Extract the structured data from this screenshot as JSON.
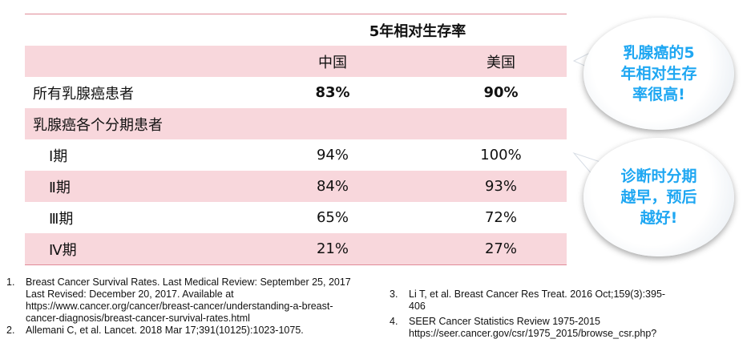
{
  "table": {
    "title": "5年相对生存率",
    "col_a": "中国",
    "col_b": "美国",
    "rows": [
      {
        "label": "所有乳腺癌患者",
        "a": "83%",
        "b": "90%"
      },
      {
        "label": "乳腺癌各个分期患者",
        "a": "",
        "b": ""
      },
      {
        "label": "Ⅰ期",
        "a": "94%",
        "b": "100%"
      },
      {
        "label": "Ⅱ期",
        "a": "84%",
        "b": "93%"
      },
      {
        "label": "Ⅲ期",
        "a": "65%",
        "b": "72%"
      },
      {
        "label": "Ⅳ期",
        "a": "21%",
        "b": "27%"
      }
    ]
  },
  "callouts": [
    {
      "text": "乳腺癌的5\n年相对生存\n率很高!"
    },
    {
      "text": "诊断时分期\n越早，预后\n越好!"
    }
  ],
  "references": [
    {
      "num": "1.",
      "text": "Breast Cancer Survival Rates. Last Medical Review: September 25, 2017\nLast Revised: December 20, 2017. Available at\nhttps://www.cancer.org/cancer/breast-cancer/understanding-a-breast-\ncancer-diagnosis/breast-cancer-survival-rates.html"
    },
    {
      "num": "2.",
      "text": "Allemani C, et al. Lancet. 2018 Mar 17;391(10125):1023-1075."
    },
    {
      "num": "3.",
      "text": "Li T, et al. Breast Cancer Res Treat. 2016 Oct;159(3):395-\n406"
    },
    {
      "num": "4.",
      "text": "SEER Cancer Statistics Review 1975-2015\nhttps://seer.cancer.gov/csr/1975_2015/browse_csr.php?"
    }
  ],
  "colors": {
    "row_highlight": "#f8d7dc",
    "rule": "#e08a97",
    "callout_text": "#1fa7f2"
  }
}
